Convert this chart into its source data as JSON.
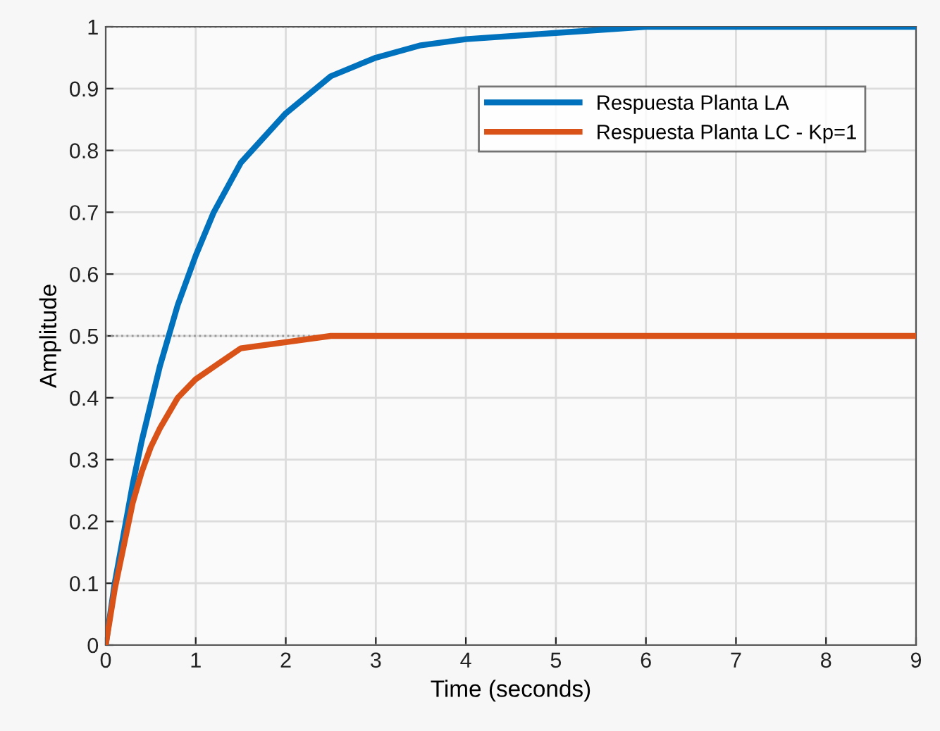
{
  "chart_data": {
    "type": "line",
    "xlabel": "Time (seconds)",
    "ylabel": "Amplitude",
    "xlim": [
      0,
      9
    ],
    "ylim": [
      0,
      1
    ],
    "xticks": [
      0,
      1,
      2,
      3,
      4,
      5,
      6,
      7,
      8,
      9
    ],
    "yticks": [
      0,
      0.1,
      0.2,
      0.3,
      0.4,
      0.5,
      0.6,
      0.7,
      0.8,
      0.9,
      1
    ],
    "grid": true,
    "legend": "top right",
    "line_style": "solid",
    "series": [
      {
        "name": "Respuesta Planta LA",
        "color": "#0072bd",
        "x": [
          0,
          0.1,
          0.2,
          0.3,
          0.4,
          0.5,
          0.6,
          0.8,
          1,
          1.2,
          1.5,
          2,
          2.5,
          3,
          3.5,
          4,
          5,
          6,
          7,
          8,
          9
        ],
        "values": [
          0,
          0.1,
          0.18,
          0.26,
          0.33,
          0.39,
          0.45,
          0.55,
          0.63,
          0.7,
          0.78,
          0.86,
          0.92,
          0.95,
          0.97,
          0.98,
          0.99,
          1,
          1,
          1,
          1
        ]
      },
      {
        "name": "Respuesta Planta LC - Kp=1",
        "color": "#d95319",
        "x": [
          0,
          0.1,
          0.2,
          0.3,
          0.4,
          0.5,
          0.6,
          0.8,
          1,
          1.2,
          1.5,
          2,
          2.5,
          3,
          4,
          5,
          6,
          7,
          8,
          9
        ],
        "values": [
          0,
          0.09,
          0.16,
          0.23,
          0.28,
          0.32,
          0.35,
          0.4,
          0.43,
          0.45,
          0.48,
          0.49,
          0.5,
          0.5,
          0.5,
          0.5,
          0.5,
          0.5,
          0.5,
          0.5
        ]
      }
    ],
    "ref_lines": [
      {
        "axis": "y",
        "value": 1,
        "color": "#9a9a9a",
        "line_style": "dotted"
      },
      {
        "axis": "y",
        "value": 0.5,
        "color": "#9a9a9a",
        "line_style": "dotted"
      }
    ]
  }
}
